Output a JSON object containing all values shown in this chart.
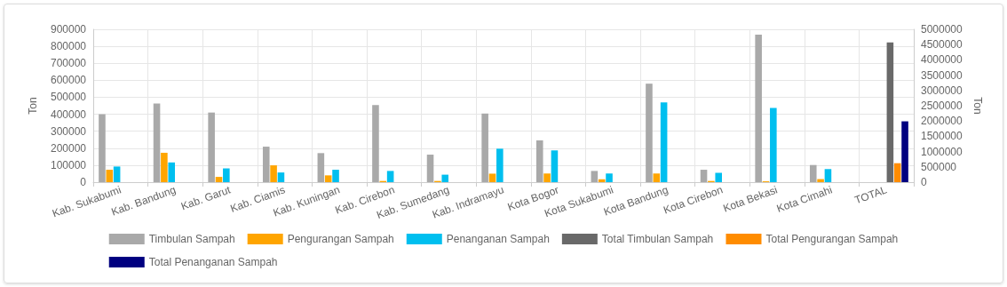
{
  "chart_data": {
    "type": "bar",
    "ylabel": "Ton",
    "y2label": "Ton",
    "categories": [
      "Kab. Sukabumi",
      "Kab. Bandung",
      "Kab. Garut",
      "Kab. Ciamis",
      "Kab. Kuningan",
      "Kab. Cirebon",
      "Kab. Sumedang",
      "Kab. Indramayu",
      "Kota Bogor",
      "Kota Sukabumi",
      "Kota Bandung",
      "Kota Cirebon",
      "Kota Bekasi",
      "Kota Cimahi",
      "TOTAL"
    ],
    "series": [
      {
        "name": "Timbulan Sampah",
        "color": "#a9a9a9",
        "values": [
          400000,
          463000,
          410000,
          209000,
          171000,
          454000,
          162000,
          404000,
          246000,
          66000,
          580000,
          73000,
          869000,
          101000,
          null
        ]
      },
      {
        "name": "Pengurangan Sampah",
        "color": "#ffa500",
        "values": [
          73000,
          173000,
          31000,
          99000,
          40000,
          7000,
          7000,
          50000,
          51000,
          17000,
          51000,
          7000,
          5000,
          18000,
          null
        ]
      },
      {
        "name": "Penanganan Sampah",
        "color": "#00bfef",
        "values": [
          92000,
          116000,
          81000,
          57000,
          73000,
          66000,
          44000,
          197000,
          187000,
          51000,
          470000,
          55000,
          437000,
          77000,
          null
        ]
      },
      {
        "name": "Total Timbulan Sampah",
        "color": "#696969",
        "axis": "y2",
        "values": [
          null,
          null,
          null,
          null,
          null,
          null,
          null,
          null,
          null,
          null,
          null,
          null,
          null,
          null,
          4570000
        ]
      },
      {
        "name": "Total Pengurangan Sampah",
        "color": "#ff8c00",
        "axis": "y2",
        "values": [
          null,
          null,
          null,
          null,
          null,
          null,
          null,
          null,
          null,
          null,
          null,
          null,
          null,
          null,
          620000
        ]
      },
      {
        "name": "Total Penanganan Sampah",
        "color": "#000080",
        "axis": "y2",
        "values": [
          null,
          null,
          null,
          null,
          null,
          null,
          null,
          null,
          null,
          null,
          null,
          null,
          null,
          null,
          1990000
        ]
      }
    ],
    "ylim": [
      0,
      900000
    ],
    "yticks": [
      0,
      100000,
      200000,
      300000,
      400000,
      500000,
      600000,
      700000,
      800000,
      900000
    ],
    "y2lim": [
      0,
      5000000
    ],
    "y2ticks": [
      0,
      500000,
      1000000,
      1500000,
      2000000,
      2500000,
      3000000,
      3500000,
      4000000,
      4500000,
      5000000
    ],
    "grid": true,
    "legend": "bottom"
  }
}
